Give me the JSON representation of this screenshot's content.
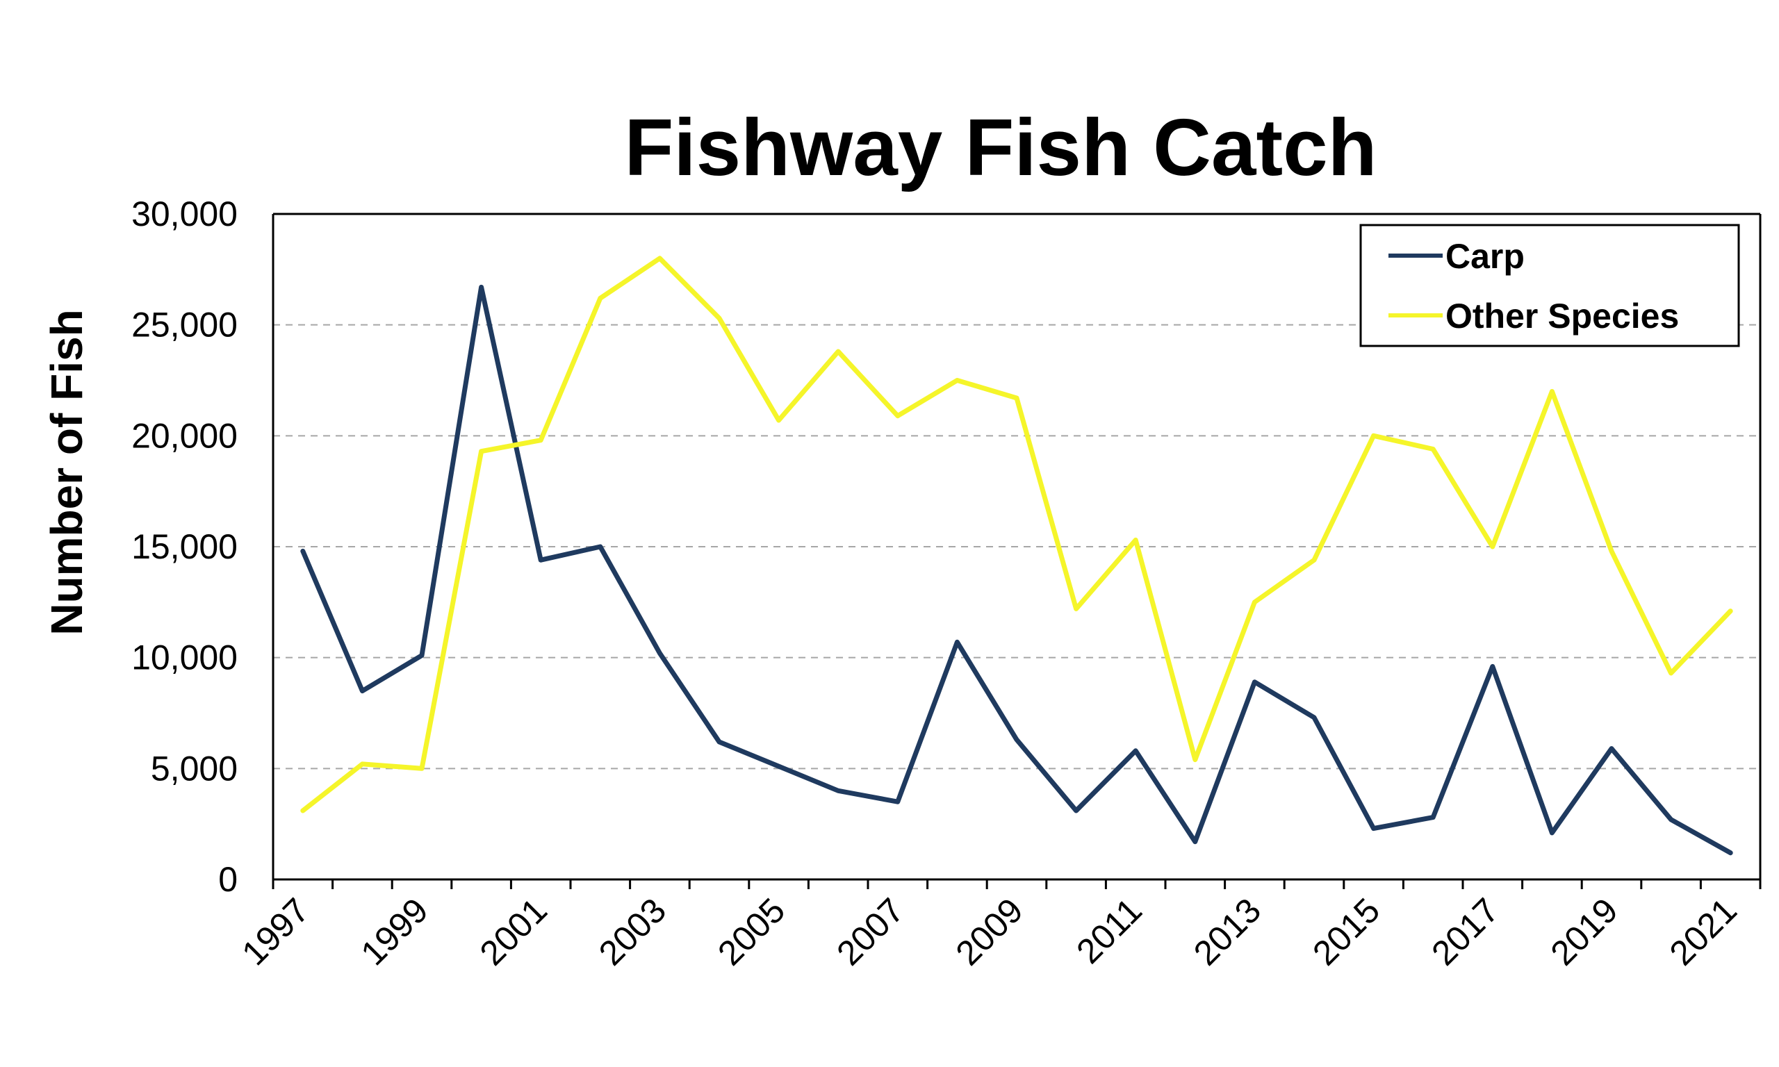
{
  "chart_data": {
    "type": "line",
    "title": "Fishway Fish Catch",
    "xlabel": "",
    "ylabel": "Number of Fish",
    "ylim": [
      0,
      30000
    ],
    "yticks": [
      0,
      5000,
      10000,
      15000,
      20000,
      25000,
      30000
    ],
    "ytick_labels": [
      "0",
      "5,000",
      "10,000",
      "15,000",
      "20,000",
      "25,000",
      "30,000"
    ],
    "x_tick_labels": [
      "1997",
      "1999",
      "2001",
      "2003",
      "2005",
      "2007",
      "2009",
      "2011",
      "2013",
      "2015",
      "2017",
      "2019",
      "2021"
    ],
    "x": [
      1997,
      1998,
      1999,
      2000,
      2001,
      2002,
      2003,
      2004,
      2005,
      2006,
      2007,
      2008,
      2009,
      2010,
      2011,
      2012,
      2013,
      2014,
      2015,
      2016,
      2017,
      2018,
      2019,
      2020,
      2021
    ],
    "series": [
      {
        "name": "Carp",
        "color": "#1f3a5f",
        "values": [
          14800,
          8500,
          10100,
          26700,
          14400,
          15000,
          10200,
          6200,
          5100,
          4000,
          3500,
          10700,
          6300,
          3100,
          5800,
          1700,
          8900,
          7300,
          2300,
          2800,
          9600,
          2100,
          5900,
          2700,
          1200
        ]
      },
      {
        "name": "Other Species",
        "color": "#f5f52a",
        "values": [
          3100,
          5200,
          5000,
          19300,
          19800,
          26200,
          28000,
          25300,
          20700,
          23800,
          20900,
          22500,
          21700,
          12200,
          15300,
          5400,
          12500,
          14400,
          20000,
          19400,
          15000,
          22000,
          14800,
          9300,
          12100
        ]
      }
    ],
    "grid": "horizontal dashed",
    "legend_position": "top-right"
  }
}
